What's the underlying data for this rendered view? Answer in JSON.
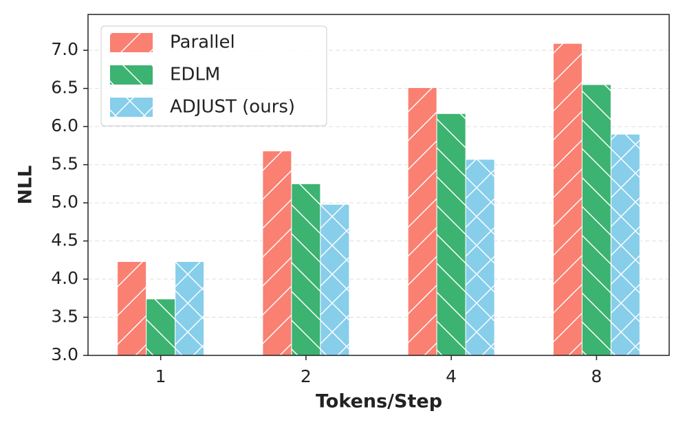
{
  "chart_data": {
    "type": "bar",
    "xlabel": "Tokens/Step",
    "ylabel": "NLL",
    "categories": [
      "1",
      "2",
      "4",
      "8"
    ],
    "series": [
      {
        "name": "Parallel",
        "color": "#fa8072",
        "hatch": "/",
        "values": [
          4.23,
          5.68,
          6.51,
          7.09
        ]
      },
      {
        "name": "EDLM",
        "color": "#3cb371",
        "hatch": "\\",
        "values": [
          3.74,
          5.25,
          6.17,
          6.55
        ]
      },
      {
        "name": "ADJUST (ours)",
        "color": "#87ceeb",
        "hatch": "x",
        "values": [
          4.23,
          4.98,
          5.57,
          5.9
        ]
      }
    ],
    "ylim": [
      3.0,
      7.47
    ],
    "yticks": [
      {
        "value": 3.0,
        "label": "3.0"
      },
      3.5,
      {
        "value": 4.0,
        "label": "4.0"
      },
      4.5,
      {
        "value": 5.0,
        "label": "5.0"
      },
      5.5,
      {
        "value": 6.0,
        "label": "6.0"
      },
      6.5,
      {
        "value": 7.0,
        "label": "7.0"
      }
    ],
    "grid": true,
    "legend": "upper left"
  }
}
